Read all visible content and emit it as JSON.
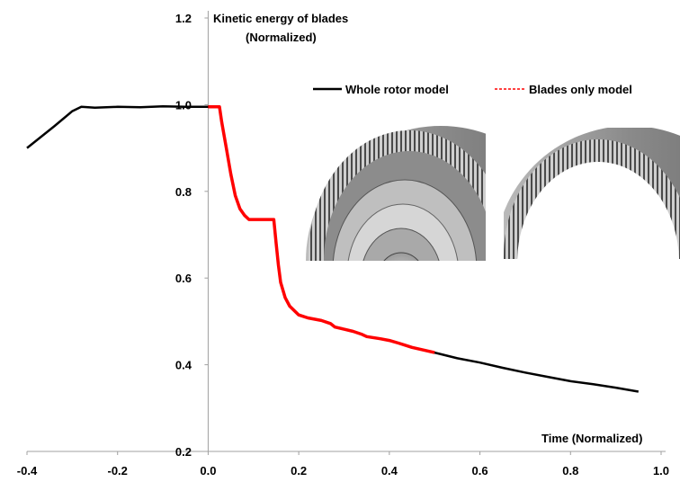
{
  "chart_data": {
    "type": "line",
    "title": "",
    "ylabel_line1": "Kinetic energy of blades",
    "ylabel_line2": "(Normalized)",
    "xlabel": "Time (Normalized)",
    "xlim": [
      -0.4,
      1.0
    ],
    "ylim": [
      0.2,
      1.2
    ],
    "xticks": [
      "-0.4",
      "-0.2",
      "0.0",
      "0.2",
      "0.4",
      "0.6",
      "0.8",
      "1.0"
    ],
    "yticks": [
      "0.2",
      "0.4",
      "0.6",
      "0.8",
      "1.0",
      "1.2"
    ],
    "grid": false,
    "legend_position": "top-right",
    "series": [
      {
        "name": "Whole rotor model",
        "color": "#000000",
        "x": [
          -0.4,
          -0.34,
          -0.3,
          -0.28,
          -0.25,
          -0.2,
          -0.15,
          -0.1,
          -0.05,
          0.0,
          0.025,
          0.03,
          0.04,
          0.05,
          0.06,
          0.07,
          0.08,
          0.09,
          0.12,
          0.145,
          0.15,
          0.155,
          0.16,
          0.17,
          0.18,
          0.19,
          0.2,
          0.22,
          0.25,
          0.27,
          0.28,
          0.3,
          0.32,
          0.34,
          0.35,
          0.38,
          0.4,
          0.42,
          0.45,
          0.5,
          0.55,
          0.6,
          0.65,
          0.7,
          0.75,
          0.8,
          0.85,
          0.9,
          0.95
        ],
        "y": [
          0.9,
          0.95,
          0.985,
          0.995,
          0.993,
          0.995,
          0.994,
          0.996,
          0.995,
          0.995,
          0.995,
          0.96,
          0.9,
          0.84,
          0.79,
          0.76,
          0.745,
          0.735,
          0.735,
          0.735,
          0.68,
          0.63,
          0.59,
          0.555,
          0.535,
          0.525,
          0.515,
          0.508,
          0.502,
          0.495,
          0.487,
          0.482,
          0.477,
          0.47,
          0.465,
          0.46,
          0.456,
          0.45,
          0.44,
          0.428,
          0.415,
          0.405,
          0.393,
          0.382,
          0.372,
          0.362,
          0.355,
          0.347,
          0.338
        ]
      },
      {
        "name": "Blades only model",
        "color": "#ff0000",
        "x": [
          0.0,
          0.025,
          0.03,
          0.04,
          0.05,
          0.06,
          0.07,
          0.08,
          0.09,
          0.12,
          0.145,
          0.15,
          0.155,
          0.16,
          0.17,
          0.18,
          0.19,
          0.2,
          0.22,
          0.25,
          0.27,
          0.28,
          0.3,
          0.32,
          0.34,
          0.35,
          0.38,
          0.4,
          0.42,
          0.45,
          0.5
        ],
        "y": [
          0.995,
          0.995,
          0.96,
          0.9,
          0.84,
          0.79,
          0.76,
          0.745,
          0.735,
          0.735,
          0.735,
          0.68,
          0.63,
          0.59,
          0.555,
          0.535,
          0.525,
          0.515,
          0.508,
          0.502,
          0.495,
          0.487,
          0.482,
          0.477,
          0.47,
          0.465,
          0.46,
          0.456,
          0.45,
          0.44,
          0.428
        ]
      }
    ],
    "insets": [
      {
        "name": "whole-rotor-render",
        "description_icon": "rotor-with-disk-icon"
      },
      {
        "name": "blades-only-render",
        "description_icon": "blade-ring-icon"
      }
    ]
  }
}
